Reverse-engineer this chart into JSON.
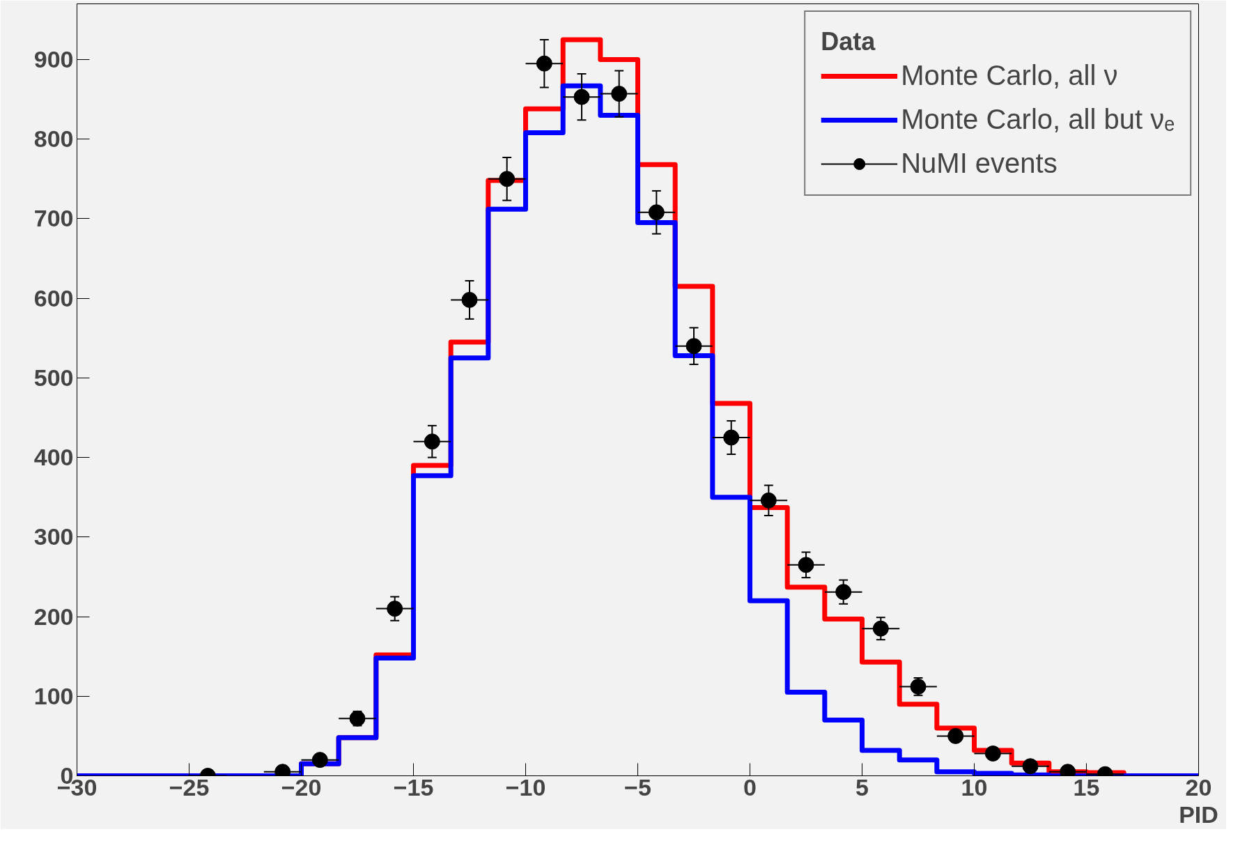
{
  "chart_data": {
    "type": "histogram",
    "xlabel": "PID",
    "legend_title": "Data",
    "bins": [
      -30,
      -28.333,
      -26.667,
      -25,
      -23.333,
      -21.667,
      -20,
      -18.333,
      -16.667,
      -15,
      -13.333,
      -11.667,
      -10,
      -8.333,
      -6.667,
      -5,
      -3.333,
      -1.667,
      0,
      1.667,
      3.333,
      5,
      6.667,
      8.333,
      10,
      11.667,
      13.333,
      15,
      16.667,
      18.333,
      20
    ],
    "series": [
      {
        "name": "Monte Carlo, all ν",
        "color": "#ff0000",
        "values": [
          0,
          0,
          0,
          0,
          0,
          0,
          15,
          48,
          152,
          390,
          545,
          748,
          838,
          925,
          900,
          768,
          615,
          468,
          337,
          237,
          197,
          143,
          90,
          60,
          32,
          16,
          5,
          4,
          0,
          0
        ]
      },
      {
        "name": "Monte Carlo, all but νₑ",
        "color": "#0000ff",
        "values": [
          0,
          0,
          0,
          0,
          0,
          0,
          15,
          48,
          148,
          377,
          525,
          712,
          808,
          867,
          830,
          695,
          528,
          350,
          220,
          105,
          70,
          32,
          20,
          5,
          3,
          1,
          0,
          0,
          0,
          0
        ]
      },
      {
        "name": "NuMI events",
        "type": "scatter",
        "color": "#000000",
        "marker": "circle",
        "x": [
          -24.167,
          -20.833,
          -19.167,
          -17.5,
          -15.833,
          -14.167,
          -12.5,
          -10.833,
          -9.167,
          -7.5,
          -5.833,
          -4.167,
          -2.5,
          -0.833,
          0.833,
          2.5,
          4.167,
          5.833,
          7.5,
          9.167,
          10.833,
          12.5,
          14.167,
          15.833
        ],
        "values": [
          0,
          5,
          20,
          72,
          210,
          420,
          598,
          750,
          895,
          853,
          857,
          708,
          540,
          425,
          346,
          265,
          231,
          185,
          112,
          50,
          28,
          12,
          5,
          2
        ],
        "errors": [
          null,
          2,
          5,
          9,
          15,
          20,
          24,
          27,
          30,
          29,
          29,
          27,
          23,
          21,
          19,
          16,
          15,
          14,
          11,
          7,
          5,
          3,
          2,
          1
        ],
        "xerrors": [
          0.833,
          0.833,
          0.833,
          0.833,
          0.833,
          0.833,
          0.833,
          0.833,
          0.833,
          0.833,
          0.833,
          0.833,
          0.833,
          0.833,
          0.833,
          0.833,
          0.833,
          0.833,
          0.833,
          0.833,
          0.833,
          0.833,
          0.833,
          0.833
        ]
      }
    ],
    "xlim": [
      -30,
      20
    ],
    "xticks": [
      -30,
      -25,
      -20,
      -15,
      -10,
      -5,
      0,
      5,
      10,
      15,
      20
    ],
    "ylim": [
      0,
      970
    ],
    "yticks": [
      0,
      100,
      200,
      300,
      400,
      500,
      600,
      700,
      800,
      900
    ],
    "grid": false,
    "legend": "top right"
  }
}
